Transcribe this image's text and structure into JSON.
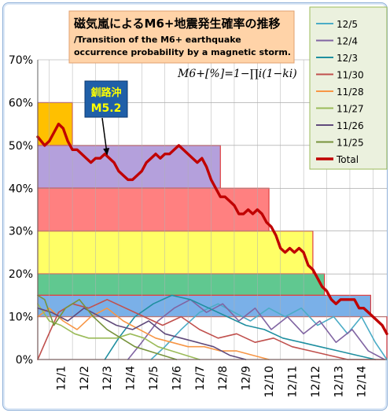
{
  "chart_data": {
    "type": "line",
    "title_jp": "磁気嵐によるM6+地震発生確率の推移",
    "title_en_1": "/Transition of the M6+ earthquake",
    "title_en_2": "occurrence probability by a magnetic storm.",
    "formula": "M6+[%]=1−∏i(1−ki)",
    "annotation_place": "釧路沖",
    "annotation_mag": "M5.2",
    "annotation_x": 3.0,
    "annotation_y": 47.5,
    "yticks": [
      "0%",
      "10%",
      "20%",
      "30%",
      "40%",
      "50%",
      "60%",
      "70%"
    ],
    "ylim": [
      0,
      70
    ],
    "xlim": [
      0.0,
      15.1
    ],
    "xtick_labels": [
      {
        "x": 1,
        "label": "12/1"
      },
      {
        "x": 2,
        "label": "12/2"
      },
      {
        "x": 3,
        "label": "12/3"
      },
      {
        "x": 4,
        "label": "12/4"
      },
      {
        "x": 5,
        "label": "12/5"
      },
      {
        "x": 6,
        "label": "12/6"
      },
      {
        "x": 7,
        "label": "12/7"
      },
      {
        "x": 8,
        "label": "12/8"
      },
      {
        "x": 9,
        "label": "12/9"
      },
      {
        "x": 10,
        "label": "12/10"
      },
      {
        "x": 11,
        "label": "12/11"
      },
      {
        "x": 12,
        "label": "12/12"
      },
      {
        "x": 13,
        "label": "12/13"
      },
      {
        "x": 14,
        "label": "12/14"
      }
    ],
    "bands": [
      {
        "x0": 0.0,
        "x1": 1.5,
        "y0": 50,
        "y1": 60,
        "fill": "#ffc000",
        "stroke": "#e04040"
      },
      {
        "x0": 0.0,
        "x1": 7.9,
        "y0": 40,
        "y1": 50,
        "fill": "#b4a0dc",
        "stroke": "#e04040"
      },
      {
        "x0": 0.0,
        "x1": 10.0,
        "y0": 30,
        "y1": 40,
        "fill": "#ff8080",
        "stroke": "#e04040"
      },
      {
        "x0": 0.0,
        "x1": 11.9,
        "y0": 20,
        "y1": 30,
        "fill": "#ffff66",
        "stroke": "#e04040"
      },
      {
        "x0": 0.0,
        "x1": 12.4,
        "y0": 15,
        "y1": 20,
        "fill": "#60c890",
        "stroke": "#e04040"
      },
      {
        "x0": 0.0,
        "x1": 14.4,
        "y0": 10,
        "y1": 15,
        "fill": "#7ab0e8",
        "stroke": "#e04040"
      },
      {
        "x0": 0.0,
        "x1": 15.1,
        "y0": 0,
        "y1": 10,
        "fill": "#ffffff",
        "stroke": "#e04040"
      }
    ],
    "series": [
      {
        "name": "12/5",
        "color": "#4bacc6",
        "x": [
          4.9,
          5.5,
          6.2,
          7.0,
          7.8,
          8.5,
          9.2,
          10.0,
          10.7,
          11.4,
          12.1,
          12.8,
          13.4,
          14.0,
          14.6,
          15.1
        ],
        "y": [
          0,
          3,
          7,
          11,
          13,
          11,
          9,
          12,
          10,
          12,
          8,
          10,
          6,
          10,
          4,
          0
        ]
      },
      {
        "name": "12/4",
        "color": "#8064a2",
        "x": [
          3.9,
          4.5,
          5.2,
          5.9,
          6.6,
          7.3,
          8.0,
          8.7,
          9.4,
          10.1,
          10.8,
          11.5,
          12.2,
          12.9,
          13.6,
          14.3,
          15.0
        ],
        "y": [
          0,
          4,
          9,
          12,
          14,
          11,
          13,
          9,
          12,
          7,
          10,
          6,
          9,
          4,
          7,
          2,
          0
        ]
      },
      {
        "name": "12/3",
        "color": "#1f8fa0",
        "x": [
          2.9,
          3.5,
          4.2,
          5.0,
          5.8,
          6.6,
          7.4,
          8.2,
          9.0,
          9.8,
          10.6,
          11.4,
          12.2,
          13.0,
          13.8,
          14.6
        ],
        "y": [
          0,
          5,
          10,
          13,
          15,
          14,
          12,
          10,
          8,
          7,
          5,
          4,
          3,
          2,
          1,
          0
        ]
      },
      {
        "name": "11/30",
        "color": "#c0504d",
        "x": [
          0.0,
          0.4,
          0.9,
          1.5,
          2.2,
          3.0,
          3.8,
          4.6,
          5.4,
          6.2,
          7.0,
          7.8,
          8.6,
          9.4,
          10.2,
          11.0,
          11.8,
          12.6,
          13.4,
          14.2,
          15.0
        ],
        "y": [
          0,
          5,
          11,
          13,
          12,
          14,
          12,
          10,
          8,
          10,
          7,
          5,
          6,
          4,
          5,
          3,
          2,
          1,
          0,
          0,
          0
        ]
      },
      {
        "name": "11/28",
        "color": "#f79646",
        "x": [
          0.0,
          0.5,
          1.1,
          1.7,
          2.3,
          3.0,
          3.7,
          4.4,
          5.1,
          5.8,
          6.5,
          7.2,
          7.9,
          8.6,
          9.3,
          10.0
        ],
        "y": [
          10,
          12,
          9,
          7,
          10,
          12,
          9,
          7,
          5,
          4,
          3,
          3,
          2,
          2,
          1,
          0
        ]
      },
      {
        "name": "11/27",
        "color": "#9bbb59",
        "x": [
          0.0,
          0.5,
          1.0,
          1.6,
          2.2,
          2.8,
          3.4,
          4.0,
          4.6,
          5.2,
          5.8,
          6.4,
          7.0
        ],
        "y": [
          13,
          9,
          8,
          6,
          5,
          5,
          5,
          6,
          5,
          3,
          2,
          1,
          0
        ]
      },
      {
        "name": "11/26",
        "color": "#604a7b",
        "x": [
          0.0,
          0.6,
          1.3,
          2.0,
          2.7,
          3.4,
          4.1,
          4.8,
          5.5,
          6.2,
          6.9,
          7.6,
          8.3,
          9.0
        ],
        "y": [
          12,
          11,
          9,
          12,
          10,
          8,
          7,
          9,
          6,
          5,
          4,
          3,
          1,
          0
        ]
      },
      {
        "name": "11/25",
        "color": "#77933c",
        "x": [
          0.0,
          0.3,
          0.7,
          1.2,
          1.8,
          2.4,
          3.0,
          3.6,
          4.2,
          4.8,
          5.4,
          6.0
        ],
        "y": [
          15,
          14,
          8,
          12,
          14,
          10,
          7,
          5,
          3,
          2,
          1,
          0
        ]
      },
      {
        "name": "Total",
        "color": "#c00000",
        "bold": true,
        "x": [
          0.0,
          0.15,
          0.3,
          0.5,
          0.7,
          0.9,
          1.1,
          1.3,
          1.5,
          1.7,
          1.9,
          2.1,
          2.3,
          2.5,
          2.7,
          2.9,
          3.1,
          3.3,
          3.5,
          3.7,
          3.9,
          4.1,
          4.3,
          4.5,
          4.7,
          4.9,
          5.1,
          5.3,
          5.5,
          5.7,
          5.9,
          6.1,
          6.3,
          6.5,
          6.7,
          6.9,
          7.1,
          7.3,
          7.5,
          7.7,
          7.9,
          8.1,
          8.3,
          8.5,
          8.7,
          8.9,
          9.1,
          9.3,
          9.5,
          9.7,
          9.9,
          10.1,
          10.3,
          10.5,
          10.7,
          10.9,
          11.1,
          11.3,
          11.5,
          11.7,
          11.9,
          12.1,
          12.3,
          12.5,
          12.7,
          12.9,
          13.1,
          13.3,
          13.5,
          13.7,
          13.9,
          14.1,
          14.3,
          14.5,
          14.7,
          14.9,
          15.1
        ],
        "y": [
          52,
          51,
          50,
          51,
          53,
          55,
          54,
          51,
          49,
          49,
          48,
          47,
          46,
          47,
          47,
          48,
          47,
          46,
          44,
          43,
          42,
          42,
          43,
          44,
          46,
          47,
          48,
          47,
          48,
          48,
          49,
          50,
          49,
          48,
          47,
          46,
          47,
          45,
          42,
          40,
          38,
          38,
          37,
          36,
          34,
          34,
          35,
          34,
          35,
          34,
          32,
          31,
          29,
          26,
          25,
          26,
          25,
          26,
          25,
          22,
          21,
          19,
          17,
          16,
          14,
          13,
          14,
          14,
          14,
          14,
          12,
          12,
          11,
          10,
          9,
          8,
          6
        ]
      }
    ]
  }
}
